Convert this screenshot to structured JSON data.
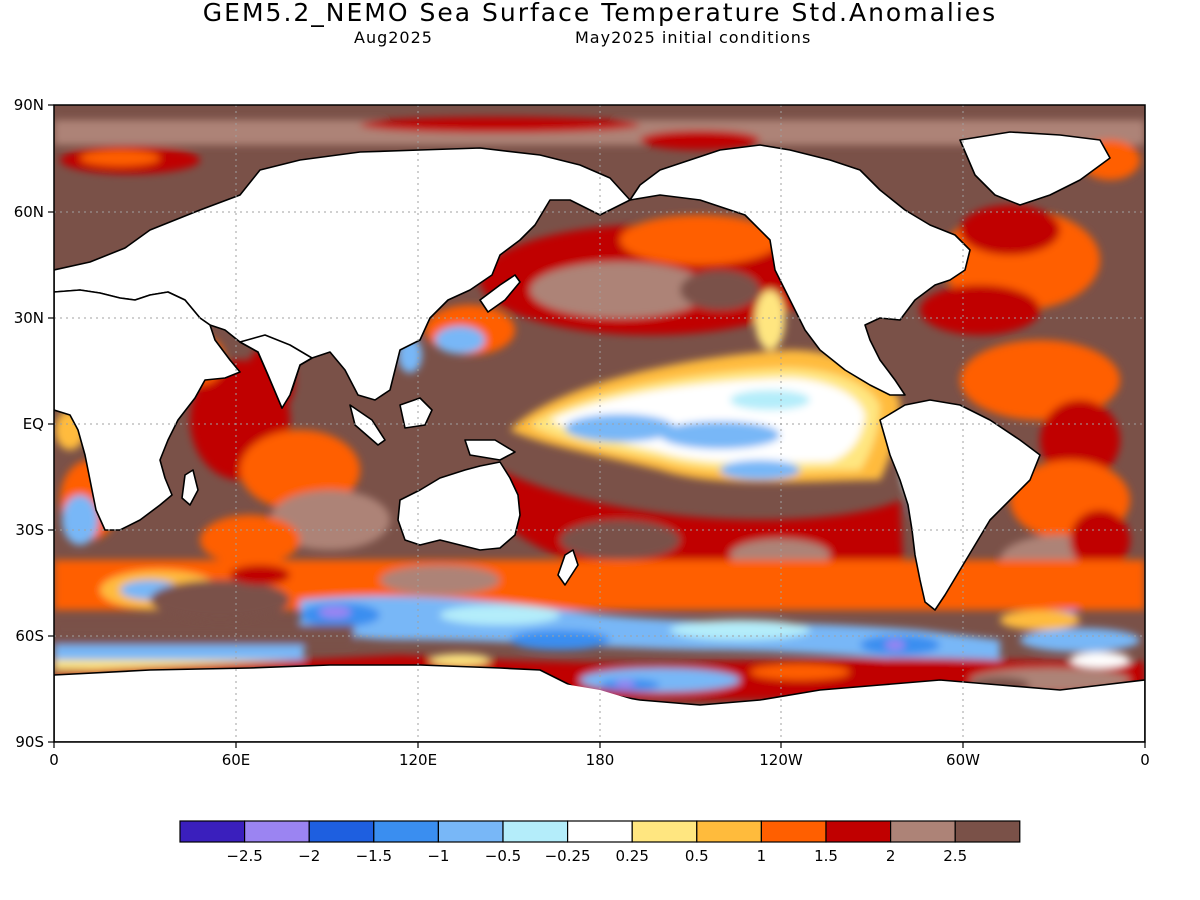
{
  "header": {
    "title": "GEM5.2_NEMO Sea Surface Temperature Std.Anomalies",
    "valid_month": "Aug2025",
    "init_note": "May2025 initial conditions"
  },
  "map": {
    "lat_labels": [
      "90N",
      "60N",
      "30N",
      "EQ",
      "30S",
      "60S",
      "90S"
    ],
    "lon_labels": [
      "0",
      "60E",
      "120E",
      "180",
      "120W",
      "60W",
      "0"
    ],
    "grid": "dotted"
  },
  "colorbar": {
    "colors": [
      "#3a1fbd",
      "#9b84f2",
      "#1e5fe0",
      "#3a8ef0",
      "#78b7f7",
      "#b4edfa",
      "#ffffff",
      "#ffe680",
      "#ffbb3c",
      "#ff5f00",
      "#c00000",
      "#ad8377",
      "#7a5148"
    ],
    "labels": [
      "−2.5",
      "−2",
      "−1.5",
      "−1",
      "−0.5",
      "−0.25",
      "0.25",
      "0.5",
      "1",
      "1.5",
      "2",
      "2.5"
    ]
  }
}
